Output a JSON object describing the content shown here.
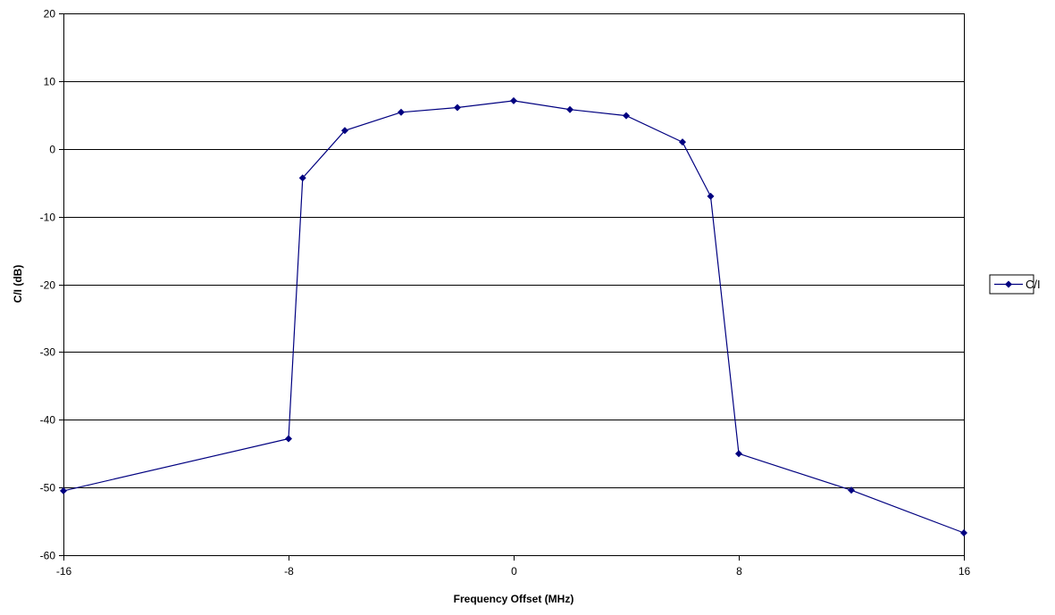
{
  "chart_data": {
    "type": "line",
    "title": "",
    "xlabel": "Frequency Offset (MHz)",
    "ylabel": "C/I (dB)",
    "xlim": [
      -16,
      16
    ],
    "ylim": [
      -60,
      20
    ],
    "x_ticks": [
      -16,
      -8,
      0,
      8,
      16
    ],
    "y_ticks": [
      20,
      10,
      0,
      -10,
      -20,
      -30,
      -40,
      -50,
      -60
    ],
    "grid": "horizontal major gridlines",
    "legend_position": "right",
    "series": [
      {
        "name": "C/I",
        "color": "#000080",
        "marker": "diamond",
        "points": [
          {
            "x": -16,
            "y": -50.5
          },
          {
            "x": -8,
            "y": -42.8
          },
          {
            "x": -7.5,
            "y": -4.3
          },
          {
            "x": -6.0,
            "y": 2.7
          },
          {
            "x": -4,
            "y": 5.4
          },
          {
            "x": -2,
            "y": 6.1
          },
          {
            "x": 0,
            "y": 7.1
          },
          {
            "x": 2,
            "y": 5.8
          },
          {
            "x": 4,
            "y": 4.9
          },
          {
            "x": 6.0,
            "y": 1.0
          },
          {
            "x": 7.0,
            "y": -7.0
          },
          {
            "x": 8,
            "y": -45.0
          },
          {
            "x": 12,
            "y": -50.4
          },
          {
            "x": 16,
            "y": -56.7
          }
        ]
      }
    ]
  }
}
